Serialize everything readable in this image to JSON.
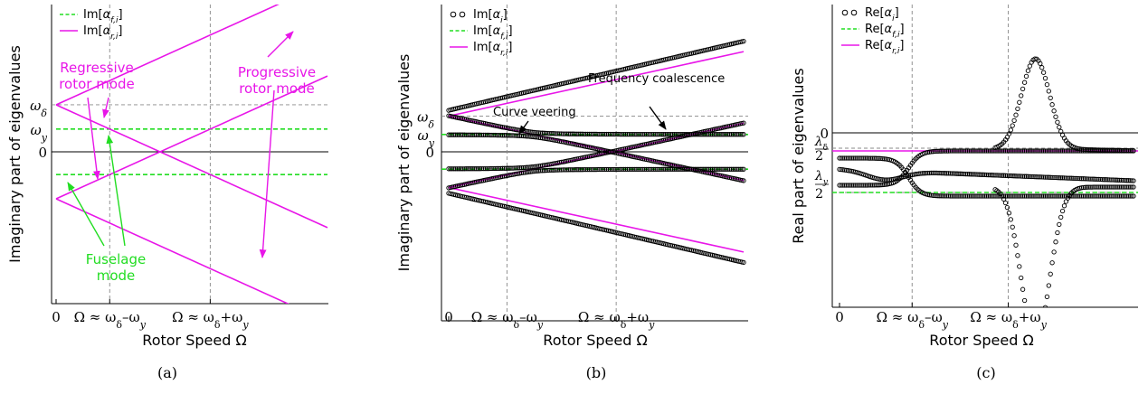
{
  "chart_data": [
    {
      "id": "a",
      "type": "line",
      "caption": "(a)",
      "xlabel": "Rotor Speed Ω",
      "ylabel": "Imaginary part of eigenvalues",
      "x_ticks": [
        "0",
        "Ω ≈ ωδ–ωy",
        "Ω ≈ ωδ+ωy"
      ],
      "y_ticks": [
        "ωδ",
        "ωy",
        "0"
      ],
      "legend": [
        "Im[αf,i]",
        "Im[αr,i]"
      ],
      "params": {
        "omega_delta": 0.62,
        "omega_y": 0.3
      },
      "xlim": [
        0,
        1.62
      ],
      "ylim": [
        -1.25,
        1.25
      ],
      "series": [
        {
          "name": "Im[αf,i]",
          "style": "dashed",
          "color": "#22dd22",
          "x": [
            0,
            1.62
          ],
          "y": [
            0.3,
            0.3
          ]
        },
        {
          "name": "Im[αf,i]",
          "style": "dashed",
          "color": "#22dd22",
          "x": [
            0,
            1.62
          ],
          "y": [
            -0.3,
            -0.3
          ]
        },
        {
          "name": "Im[αr,i]",
          "style": "solid",
          "color": "#e816e8",
          "x": [
            0,
            1.62
          ],
          "y": [
            0.62,
            2.24
          ]
        },
        {
          "name": "Im[αr,i]",
          "style": "solid",
          "color": "#e816e8",
          "x": [
            0,
            1.62
          ],
          "y": [
            0.62,
            -1.0
          ]
        },
        {
          "name": "Im[αr,i]",
          "style": "solid",
          "color": "#e816e8",
          "x": [
            0,
            1.62
          ],
          "y": [
            -0.62,
            1.0
          ]
        },
        {
          "name": "Im[αr,i]",
          "style": "solid",
          "color": "#e816e8",
          "x": [
            0,
            1.62
          ],
          "y": [
            -0.62,
            -2.24
          ]
        }
      ],
      "annotations": [
        {
          "text_lines": [
            "Regressive",
            "rotor mode"
          ],
          "color": "#e816e8"
        },
        {
          "text_lines": [
            "Progressive",
            "rotor mode"
          ],
          "color": "#e816e8"
        },
        {
          "text_lines": [
            "Fuselage",
            "mode"
          ],
          "color": "#22dd22"
        }
      ]
    },
    {
      "id": "b",
      "type": "line",
      "caption": "(b)",
      "xlabel": "Rotor Speed Ω",
      "ylabel": "Imaginary part of eigenvalues",
      "x_ticks": [
        "0",
        "Ω ≈ ωδ–ωy",
        "Ω ≈ ωδ+ωy"
      ],
      "y_ticks": [
        "ωδ",
        "ωy",
        "0"
      ],
      "legend": [
        "Im[αi]",
        "Im[αf,i]",
        "Im[αr,i]"
      ],
      "params": {
        "omega_delta": 0.62,
        "omega_y": 0.3
      },
      "xlim": [
        0,
        1.62
      ],
      "ylim": [
        -1.25,
        1.25
      ],
      "series": [
        {
          "name": "Im[αi]",
          "style": "markers",
          "color": "#000000",
          "description": "coupled eigenvalues; veering near Ω ≈ ωδ–ωy, coalescence near Ω ≈ ωδ+ωy"
        },
        {
          "name": "Im[αf,i]",
          "style": "dashed",
          "color": "#22dd22",
          "y": [
            0.3,
            -0.3
          ]
        },
        {
          "name": "Im[αr,i]",
          "style": "solid",
          "color": "#e816e8",
          "y0": [
            0.62,
            -0.62
          ],
          "slope": [
            1,
            -1
          ]
        }
      ],
      "annotations": [
        {
          "text_lines": [
            "Curve veering"
          ],
          "color": "#000000"
        },
        {
          "text_lines": [
            "Frequency coalescence"
          ],
          "color": "#000000"
        }
      ]
    },
    {
      "id": "c",
      "type": "line",
      "caption": "(c)",
      "xlabel": "Rotor Speed Ω",
      "ylabel": "Real part of eigenvalues",
      "x_ticks": [
        "0",
        "Ω ≈ ωδ–ωy",
        "Ω ≈ ωδ+ωy"
      ],
      "y_ticks": [
        "0",
        "λδ/2",
        "λy/2"
      ],
      "legend": [
        "Re[αi]",
        "Re[αf,i]",
        "Re[αr,i]"
      ],
      "params": {
        "lambda_delta_half": -0.1,
        "lambda_y_half": -0.3
      },
      "xlim": [
        0,
        1.62
      ],
      "series": [
        {
          "name": "Re[αi]",
          "style": "markers",
          "color": "#000000",
          "description": "peaks near Ω ≈ ωδ+ωy (about +0.5 and about −0.85)"
        },
        {
          "name": "Re[αf,i]",
          "style": "dashed",
          "color": "#22dd22",
          "y": [
            -0.3,
            -0.3
          ]
        },
        {
          "name": "Re[αr,i]",
          "style": "solid",
          "color": "#e816e8",
          "y": [
            -0.1,
            -0.1
          ]
        }
      ]
    }
  ]
}
